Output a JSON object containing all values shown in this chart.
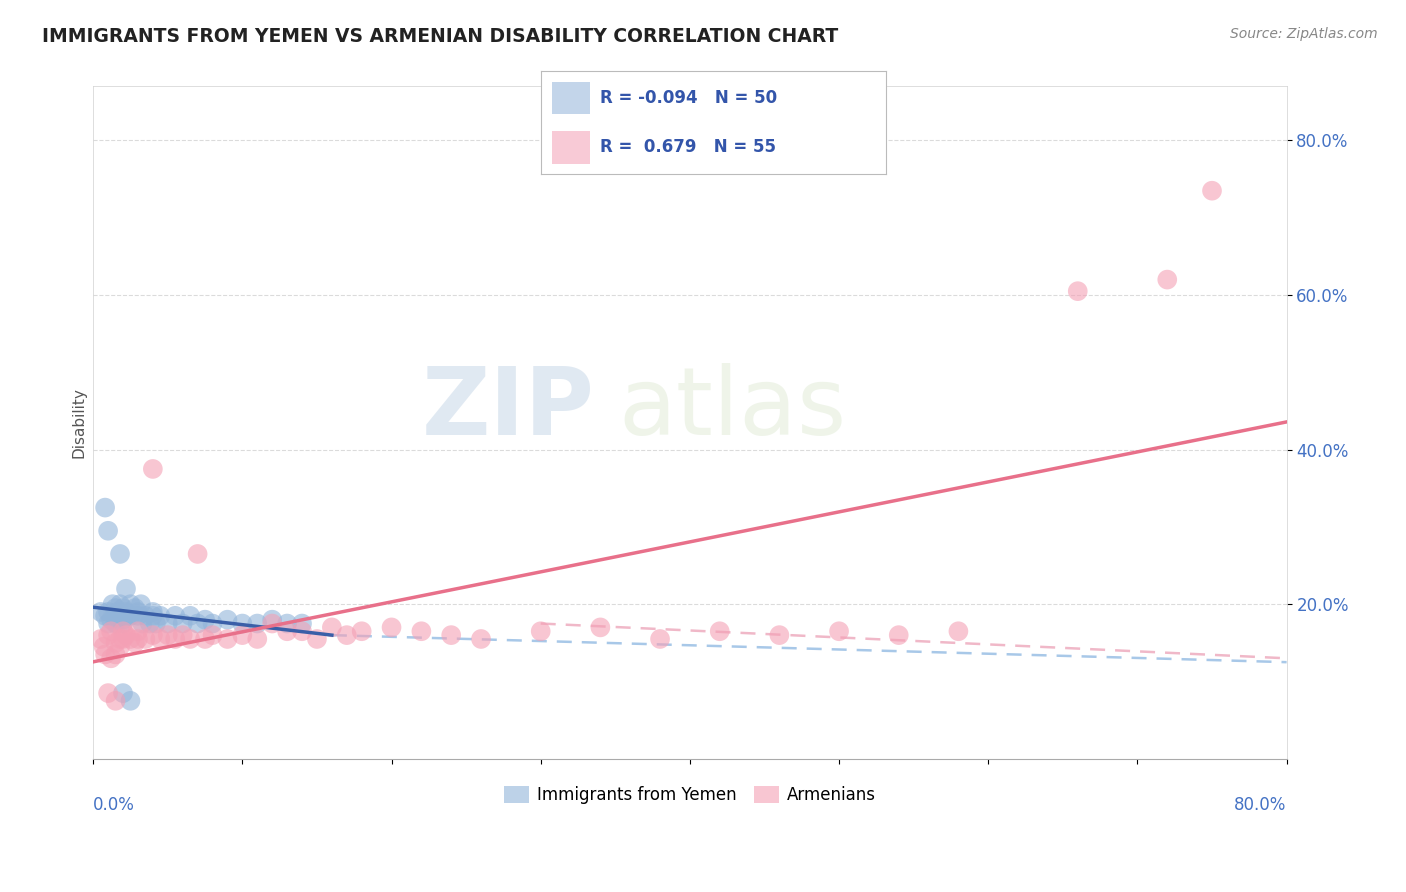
{
  "title": "IMMIGRANTS FROM YEMEN VS ARMENIAN DISABILITY CORRELATION CHART",
  "source": "Source: ZipAtlas.com",
  "ylabel": "Disability",
  "xlim": [
    0.0,
    0.8
  ],
  "ylim": [
    0.0,
    0.87
  ],
  "ytick_vals": [
    0.2,
    0.4,
    0.6,
    0.8
  ],
  "ytick_labels": [
    "20.0%",
    "40.0%",
    "60.0%",
    "80.0%"
  ],
  "blue_color": "#92b4d9",
  "pink_color": "#f4a0b5",
  "blue_line_color": "#3a5fa8",
  "pink_line_color": "#e8708a",
  "blue_dash_color": "#a8c8e8",
  "pink_dash_color": "#f0b8c8",
  "blue_scatter": [
    [
      0.005,
      0.19
    ],
    [
      0.008,
      0.185
    ],
    [
      0.01,
      0.175
    ],
    [
      0.01,
      0.19
    ],
    [
      0.012,
      0.18
    ],
    [
      0.013,
      0.2
    ],
    [
      0.015,
      0.195
    ],
    [
      0.015,
      0.185
    ],
    [
      0.015,
      0.175
    ],
    [
      0.016,
      0.19
    ],
    [
      0.018,
      0.185
    ],
    [
      0.018,
      0.2
    ],
    [
      0.02,
      0.195
    ],
    [
      0.02,
      0.185
    ],
    [
      0.02,
      0.18
    ],
    [
      0.02,
      0.175
    ],
    [
      0.022,
      0.22
    ],
    [
      0.022,
      0.19
    ],
    [
      0.023,
      0.185
    ],
    [
      0.025,
      0.2
    ],
    [
      0.025,
      0.185
    ],
    [
      0.028,
      0.195
    ],
    [
      0.03,
      0.19
    ],
    [
      0.03,
      0.185
    ],
    [
      0.032,
      0.2
    ],
    [
      0.033,
      0.175
    ],
    [
      0.035,
      0.185
    ],
    [
      0.038,
      0.175
    ],
    [
      0.04,
      0.19
    ],
    [
      0.04,
      0.185
    ],
    [
      0.042,
      0.175
    ],
    [
      0.045,
      0.185
    ],
    [
      0.05,
      0.175
    ],
    [
      0.055,
      0.185
    ],
    [
      0.06,
      0.175
    ],
    [
      0.065,
      0.185
    ],
    [
      0.07,
      0.175
    ],
    [
      0.075,
      0.18
    ],
    [
      0.08,
      0.175
    ],
    [
      0.09,
      0.18
    ],
    [
      0.1,
      0.175
    ],
    [
      0.11,
      0.175
    ],
    [
      0.12,
      0.18
    ],
    [
      0.13,
      0.175
    ],
    [
      0.14,
      0.175
    ],
    [
      0.008,
      0.325
    ],
    [
      0.01,
      0.295
    ],
    [
      0.018,
      0.265
    ],
    [
      0.02,
      0.085
    ],
    [
      0.025,
      0.075
    ]
  ],
  "pink_scatter": [
    [
      0.005,
      0.155
    ],
    [
      0.007,
      0.145
    ],
    [
      0.008,
      0.135
    ],
    [
      0.01,
      0.16
    ],
    [
      0.012,
      0.13
    ],
    [
      0.012,
      0.165
    ],
    [
      0.015,
      0.15
    ],
    [
      0.015,
      0.135
    ],
    [
      0.018,
      0.155
    ],
    [
      0.018,
      0.145
    ],
    [
      0.02,
      0.165
    ],
    [
      0.02,
      0.155
    ],
    [
      0.022,
      0.16
    ],
    [
      0.025,
      0.155
    ],
    [
      0.028,
      0.15
    ],
    [
      0.03,
      0.165
    ],
    [
      0.03,
      0.155
    ],
    [
      0.035,
      0.155
    ],
    [
      0.04,
      0.16
    ],
    [
      0.04,
      0.375
    ],
    [
      0.045,
      0.155
    ],
    [
      0.05,
      0.16
    ],
    [
      0.055,
      0.155
    ],
    [
      0.06,
      0.16
    ],
    [
      0.065,
      0.155
    ],
    [
      0.07,
      0.265
    ],
    [
      0.075,
      0.155
    ],
    [
      0.08,
      0.16
    ],
    [
      0.09,
      0.155
    ],
    [
      0.1,
      0.16
    ],
    [
      0.11,
      0.155
    ],
    [
      0.12,
      0.175
    ],
    [
      0.13,
      0.165
    ],
    [
      0.14,
      0.165
    ],
    [
      0.15,
      0.155
    ],
    [
      0.16,
      0.17
    ],
    [
      0.17,
      0.16
    ],
    [
      0.18,
      0.165
    ],
    [
      0.2,
      0.17
    ],
    [
      0.22,
      0.165
    ],
    [
      0.24,
      0.16
    ],
    [
      0.26,
      0.155
    ],
    [
      0.3,
      0.165
    ],
    [
      0.34,
      0.17
    ],
    [
      0.38,
      0.155
    ],
    [
      0.42,
      0.165
    ],
    [
      0.46,
      0.16
    ],
    [
      0.5,
      0.165
    ],
    [
      0.54,
      0.16
    ],
    [
      0.58,
      0.165
    ],
    [
      0.01,
      0.085
    ],
    [
      0.015,
      0.075
    ],
    [
      0.66,
      0.605
    ],
    [
      0.72,
      0.62
    ],
    [
      0.75,
      0.735
    ]
  ],
  "background_color": "#ffffff",
  "grid_color": "#d8d8d8"
}
